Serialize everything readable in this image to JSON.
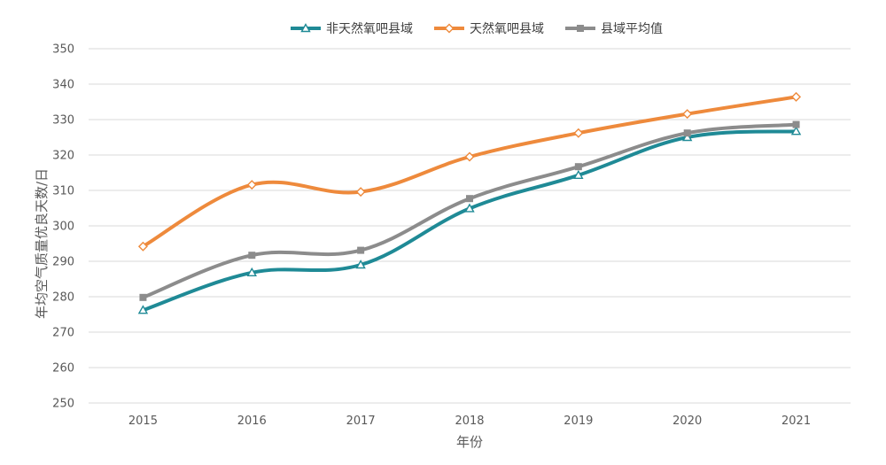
{
  "chart_data": {
    "type": "line",
    "title": "",
    "xlabel": "年份",
    "ylabel": "年均空气质量优良天数/日",
    "categories": [
      "2015",
      "2016",
      "2017",
      "2018",
      "2019",
      "2020",
      "2021"
    ],
    "ylim": [
      250,
      350
    ],
    "yticks": [
      250,
      260,
      270,
      280,
      290,
      300,
      310,
      320,
      330,
      340,
      350
    ],
    "grid": true,
    "legend_position": "top",
    "series": [
      {
        "name": "非天然氧吧县域",
        "color": "#1F8A96",
        "marker": "triangle",
        "values": [
          276.2,
          286.8,
          289,
          304.9,
          314.3,
          325,
          326.7
        ]
      },
      {
        "name": "天然氧吧县域",
        "color": "#EE8A3C",
        "marker": "diamond",
        "values": [
          294.2,
          311.6,
          309.6,
          319.5,
          326.2,
          331.6,
          336.4
        ]
      },
      {
        "name": "县域平均值",
        "color": "#8C8C8C",
        "marker": "square",
        "values": [
          279.8,
          291.7,
          293.1,
          307.7,
          316.7,
          326.2,
          328.6
        ]
      }
    ]
  }
}
